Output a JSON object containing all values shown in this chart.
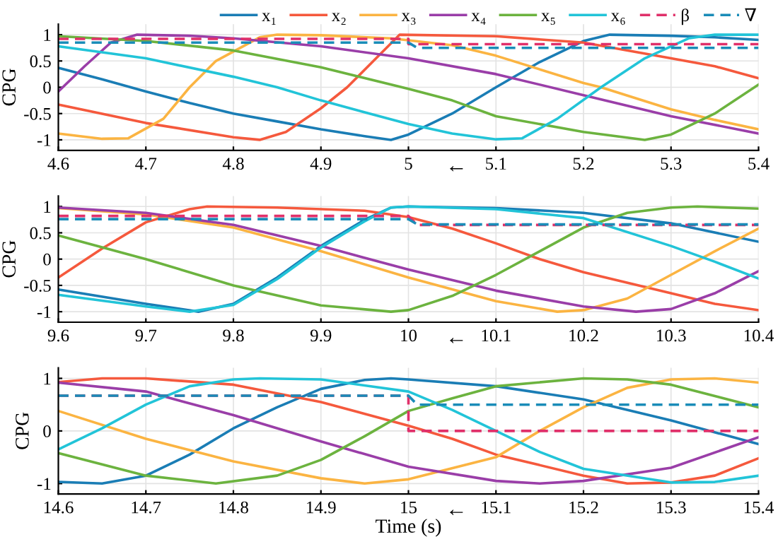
{
  "chart_data": [
    {
      "type": "line",
      "ylabel": "CPG",
      "xlim": [
        4.6,
        5.4
      ],
      "ylim": [
        -1.2,
        1.2
      ],
      "xticks": [
        4.6,
        4.7,
        4.8,
        4.9,
        5,
        5.1,
        5.2,
        5.3,
        5.4
      ],
      "yticks": [
        -1,
        -0.5,
        0,
        0.5,
        1
      ],
      "grid": true,
      "legend": "top right",
      "annotations": [
        "←"
      ],
      "series": [
        {
          "name": "x₁",
          "color": "#1a7db5",
          "x": [
            4.6,
            4.65,
            4.7,
            4.75,
            4.8,
            4.85,
            4.9,
            4.95,
            4.98,
            5.0,
            5.05,
            5.1,
            5.15,
            5.2,
            5.23,
            5.3,
            5.35,
            5.4
          ],
          "values": [
            0.37,
            0.15,
            -0.08,
            -0.3,
            -0.5,
            -0.65,
            -0.8,
            -0.93,
            -1,
            -0.9,
            -0.5,
            0,
            0.48,
            0.88,
            1,
            0.98,
            0.95,
            0.9
          ]
        },
        {
          "name": "x₂",
          "color": "#f5593d",
          "x": [
            4.6,
            4.7,
            4.8,
            4.83,
            4.86,
            4.9,
            4.93,
            4.96,
            4.99,
            5.1,
            5.2,
            5.3,
            5.35,
            5.4
          ],
          "values": [
            -0.33,
            -0.68,
            -0.95,
            -1,
            -0.85,
            -0.4,
            0,
            0.5,
            1,
            0.97,
            0.85,
            0.55,
            0.4,
            0.17
          ]
        },
        {
          "name": "x₃",
          "color": "#fbb442",
          "x": [
            4.6,
            4.65,
            4.68,
            4.72,
            4.75,
            4.78,
            4.83,
            4.85,
            4.9,
            4.98,
            5.05,
            5.1,
            5.2,
            5.22,
            5.3,
            5.35,
            5.4
          ],
          "values": [
            -0.88,
            -0.98,
            -0.97,
            -0.6,
            0,
            0.5,
            0.95,
            1,
            0.99,
            0.93,
            0.8,
            0.6,
            0.08,
            0,
            -0.42,
            -0.62,
            -0.8
          ]
        },
        {
          "name": "x₄",
          "color": "#9a3ea8",
          "x": [
            4.6,
            4.63,
            4.66,
            4.69,
            4.75,
            4.8,
            4.9,
            5.0,
            5.1,
            5.2,
            5.3,
            5.4
          ],
          "values": [
            -0.08,
            0.4,
            0.85,
            1,
            0.98,
            0.93,
            0.78,
            0.55,
            0.25,
            -0.15,
            -0.55,
            -0.88
          ]
        },
        {
          "name": "x₅",
          "color": "#6cb33f",
          "x": [
            4.6,
            4.7,
            4.8,
            4.9,
            5.0,
            5.05,
            5.1,
            5.2,
            5.27,
            5.3,
            5.35,
            5.4
          ],
          "values": [
            0.97,
            0.88,
            0.7,
            0.38,
            -0.03,
            -0.25,
            -0.55,
            -0.85,
            -1,
            -0.9,
            -0.5,
            0.05
          ]
        },
        {
          "name": "x₆",
          "color": "#22c4d8",
          "x": [
            4.6,
            4.7,
            4.8,
            4.85,
            4.9,
            5.0,
            5.05,
            5.1,
            5.13,
            5.17,
            5.22,
            5.27,
            5.32,
            5.35,
            5.4
          ],
          "values": [
            0.78,
            0.55,
            0.2,
            0,
            -0.25,
            -0.7,
            -0.88,
            -0.99,
            -0.97,
            -0.6,
            0,
            0.55,
            0.93,
            1,
            1
          ]
        },
        {
          "name": "β",
          "color": "#e0306a",
          "line_style": "dashed",
          "x": [
            4.6,
            5.0,
            5.0,
            5.4
          ],
          "values": [
            0.92,
            0.92,
            0.82,
            0.82
          ]
        },
        {
          "name": "∇",
          "color": "#1a8cb8",
          "line_style": "dashed",
          "x": [
            4.6,
            5.0,
            5.01,
            5.4
          ],
          "values": [
            0.85,
            0.85,
            0.75,
            0.75
          ]
        }
      ]
    },
    {
      "type": "line",
      "ylabel": "CPG",
      "xlim": [
        9.6,
        10.4
      ],
      "ylim": [
        -1.2,
        1.2
      ],
      "xticks": [
        9.6,
        9.7,
        9.8,
        9.9,
        10,
        10.1,
        10.2,
        10.3,
        10.4
      ],
      "yticks": [
        -1,
        -0.5,
        0,
        0.5,
        1
      ],
      "grid": true,
      "annotations": [
        "←"
      ],
      "series": [
        {
          "color": "#1a7db5",
          "x": [
            9.6,
            9.7,
            9.76,
            9.8,
            9.85,
            9.9,
            9.95,
            9.98,
            10.0,
            10.1,
            10.2,
            10.3,
            10.4
          ],
          "values": [
            -0.58,
            -0.85,
            -1,
            -0.85,
            -0.35,
            0.25,
            0.75,
            0.98,
            1,
            0.97,
            0.88,
            0.68,
            0.33
          ]
        },
        {
          "color": "#f5593d",
          "x": [
            9.6,
            9.65,
            9.7,
            9.75,
            9.77,
            9.85,
            9.95,
            10.0,
            10.05,
            10.1,
            10.15,
            10.2,
            10.3,
            10.35,
            10.4
          ],
          "values": [
            -0.35,
            0.2,
            0.7,
            0.95,
            1,
            0.98,
            0.92,
            0.8,
            0.58,
            0.3,
            0,
            -0.25,
            -0.65,
            -0.85,
            -0.97
          ]
        },
        {
          "color": "#fbb442",
          "x": [
            9.6,
            9.7,
            9.8,
            9.9,
            10.0,
            10.1,
            10.17,
            10.2,
            10.25,
            10.3,
            10.35,
            10.4
          ],
          "values": [
            0.97,
            0.85,
            0.6,
            0.15,
            -0.35,
            -0.8,
            -1,
            -0.97,
            -0.75,
            -0.3,
            0.15,
            0.58
          ]
        },
        {
          "color": "#9a3ea8",
          "x": [
            9.6,
            9.7,
            9.8,
            9.9,
            10.0,
            10.1,
            10.2,
            10.26,
            10.3,
            10.35,
            10.4
          ],
          "values": [
            0.98,
            0.88,
            0.65,
            0.25,
            -0.2,
            -0.6,
            -0.9,
            -1,
            -0.95,
            -0.65,
            -0.23
          ]
        },
        {
          "color": "#6cb33f",
          "x": [
            9.6,
            9.7,
            9.8,
            9.9,
            9.98,
            10.0,
            10.05,
            10.1,
            10.15,
            10.2,
            10.25,
            10.3,
            10.33,
            10.4
          ],
          "values": [
            0.45,
            0.0,
            -0.5,
            -0.88,
            -1,
            -0.97,
            -0.7,
            -0.3,
            0.15,
            0.6,
            0.88,
            0.98,
            1,
            0.96
          ]
        },
        {
          "color": "#22c4d8",
          "x": [
            9.6,
            9.7,
            9.75,
            9.8,
            9.85,
            9.9,
            9.95,
            9.98,
            10.0,
            10.1,
            10.2,
            10.3,
            10.35,
            10.4
          ],
          "values": [
            -0.68,
            -0.9,
            -1,
            -0.87,
            -0.38,
            0.22,
            0.72,
            0.98,
            1,
            0.95,
            0.78,
            0.25,
            -0.05,
            -0.37
          ]
        },
        {
          "color": "#e0306a",
          "line_style": "dashed",
          "x": [
            9.6,
            10.0,
            10.01,
            10.4
          ],
          "values": [
            0.82,
            0.82,
            0.65,
            0.65
          ]
        },
        {
          "color": "#1a8cb8",
          "line_style": "dashed",
          "x": [
            9.6,
            10.0,
            10.01,
            10.4
          ],
          "values": [
            0.76,
            0.76,
            0.66,
            0.66
          ]
        }
      ]
    },
    {
      "type": "line",
      "ylabel": "CPG",
      "xlabel": "Time (s)",
      "xlim": [
        14.6,
        15.4
      ],
      "ylim": [
        -1.2,
        1.2
      ],
      "xticks": [
        14.6,
        14.7,
        14.8,
        14.9,
        15,
        15.1,
        15.2,
        15.3,
        15.4
      ],
      "yticks": [
        -1,
        0,
        1
      ],
      "grid": true,
      "annotations": [
        "←"
      ],
      "series": [
        {
          "color": "#1a7db5",
          "x": [
            14.6,
            14.65,
            14.7,
            14.75,
            14.8,
            14.85,
            14.9,
            14.95,
            14.98,
            15.0,
            15.1,
            15.2,
            15.3,
            15.4
          ],
          "values": [
            -0.97,
            -1,
            -0.85,
            -0.45,
            0.05,
            0.45,
            0.8,
            0.97,
            1,
            0.98,
            0.85,
            0.6,
            0.2,
            -0.25
          ]
        },
        {
          "color": "#f5593d",
          "x": [
            14.6,
            14.65,
            14.7,
            14.8,
            14.9,
            15.0,
            15.05,
            15.1,
            15.2,
            15.25,
            15.3,
            15.35,
            15.4
          ],
          "values": [
            0.93,
            1,
            1,
            0.88,
            0.55,
            0.1,
            -0.15,
            -0.45,
            -0.85,
            -1,
            -0.98,
            -0.85,
            -0.52
          ]
        },
        {
          "color": "#fbb442",
          "x": [
            14.6,
            14.7,
            14.8,
            14.9,
            14.95,
            15.0,
            15.1,
            15.15,
            15.2,
            15.25,
            15.3,
            15.35,
            15.4
          ],
          "values": [
            0.38,
            -0.15,
            -0.58,
            -0.9,
            -1,
            -0.92,
            -0.5,
            0,
            0.45,
            0.82,
            0.98,
            1,
            0.92
          ]
        },
        {
          "color": "#9a3ea8",
          "x": [
            14.6,
            14.7,
            14.8,
            14.9,
            15.0,
            15.1,
            15.15,
            15.2,
            15.3,
            15.4
          ],
          "values": [
            0.92,
            0.75,
            0.3,
            -0.2,
            -0.68,
            -0.95,
            -1,
            -0.95,
            -0.7,
            -0.12
          ]
        },
        {
          "color": "#6cb33f",
          "x": [
            14.6,
            14.7,
            14.78,
            14.85,
            14.9,
            14.95,
            15.0,
            15.05,
            15.1,
            15.2,
            15.25,
            15.3,
            15.4
          ],
          "values": [
            -0.42,
            -0.85,
            -1,
            -0.85,
            -0.55,
            -0.1,
            0.38,
            0.62,
            0.85,
            1,
            0.98,
            0.88,
            0.45
          ]
        },
        {
          "color": "#22c4d8",
          "x": [
            14.6,
            14.65,
            14.7,
            14.75,
            14.8,
            14.83,
            14.9,
            15.0,
            15.05,
            15.1,
            15.15,
            15.2,
            15.3,
            15.35,
            15.4
          ],
          "values": [
            -0.35,
            0.05,
            0.5,
            0.85,
            0.98,
            1,
            0.98,
            0.75,
            0.4,
            0,
            -0.4,
            -0.72,
            -0.98,
            -0.97,
            -0.85
          ]
        },
        {
          "color": "#e0306a",
          "line_style": "dashed",
          "x": [
            14.6,
            15.0,
            15.0,
            15.4
          ],
          "values": [
            0.67,
            0.67,
            0.0,
            0.0
          ]
        },
        {
          "color": "#1a8cb8",
          "line_style": "dashed",
          "x": [
            14.6,
            15.0,
            15.01,
            15.4
          ],
          "values": [
            0.67,
            0.67,
            0.5,
            0.5
          ]
        }
      ]
    }
  ]
}
